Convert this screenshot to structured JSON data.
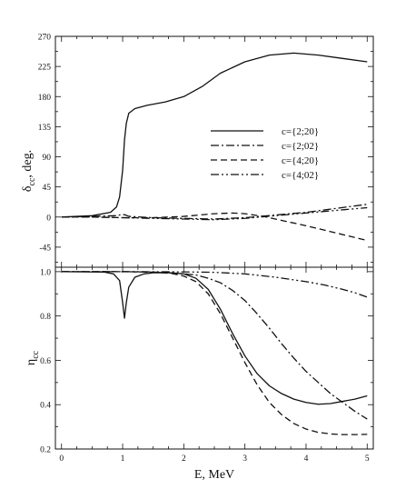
{
  "chart_data": [
    {
      "type": "line",
      "panel": "top",
      "ylabel": "δcc, deg.",
      "ylabel_main": "δ",
      "ylabel_sub": "cc",
      "ylabel_unit": ", deg.",
      "xlim": [
        -0.1,
        5.1
      ],
      "ylim": [
        -75,
        270
      ],
      "yticks": [
        -45,
        0,
        45,
        90,
        135,
        180,
        225,
        270
      ],
      "legend": "right",
      "series": [
        {
          "name": "c={2;20}",
          "dash": "solid",
          "x": [
            0,
            0.5,
            0.8,
            0.9,
            0.95,
            1.0,
            1.03,
            1.06,
            1.1,
            1.2,
            1.4,
            1.7,
            2.0,
            2.3,
            2.6,
            3.0,
            3.4,
            3.8,
            4.2,
            4.6,
            5.0
          ],
          "y": [
            0,
            2,
            7,
            15,
            30,
            70,
            115,
            140,
            155,
            162,
            167,
            172,
            180,
            195,
            215,
            232,
            242,
            245,
            242,
            237,
            232
          ]
        },
        {
          "name": "c={2;02}",
          "dash": "dashdot",
          "x": [
            0,
            0.5,
            0.9,
            1.0,
            1.05,
            1.1,
            1.5,
            2.0,
            2.5,
            3.0,
            3.5,
            4.0,
            4.5,
            5.0
          ],
          "y": [
            0,
            1,
            2,
            4,
            3,
            1,
            -1,
            -2,
            -3,
            -1,
            3,
            7,
            13,
            19
          ]
        },
        {
          "name": "c={4;20}",
          "dash": "dashed",
          "x": [
            0,
            0.5,
            1.0,
            1.5,
            2.0,
            2.5,
            2.8,
            3.0,
            3.3,
            3.6,
            4.0,
            4.5,
            5.0
          ],
          "y": [
            0,
            0,
            -1,
            -1,
            1,
            5,
            6,
            5,
            1,
            -5,
            -13,
            -24,
            -35
          ]
        },
        {
          "name": "c={4;02}",
          "dash": "dashdotdot",
          "x": [
            0,
            0.5,
            1.0,
            1.5,
            2.0,
            2.5,
            3.0,
            3.5,
            4.0,
            4.5,
            5.0
          ],
          "y": [
            0,
            0,
            -1,
            -2,
            -3,
            -4,
            -2,
            2,
            6,
            10,
            14
          ]
        }
      ]
    },
    {
      "type": "line",
      "panel": "bottom",
      "xlabel": "E, MeV",
      "ylabel": "ηcc",
      "ylabel_main": "η",
      "ylabel_sub": "cc",
      "xlim": [
        -0.1,
        5.1
      ],
      "ylim": [
        0.2,
        1.02
      ],
      "xticks": [
        0,
        1,
        2,
        3,
        4,
        5
      ],
      "yticks": [
        0.2,
        0.4,
        0.6,
        0.8,
        1.0
      ],
      "ytick_labels": [
        "0.2",
        "0.4",
        "0.6",
        "0.8",
        "1.0"
      ],
      "series": [
        {
          "name": "c={2;20}",
          "dash": "solid",
          "x": [
            0,
            0.7,
            0.85,
            0.95,
            1.0,
            1.03,
            1.06,
            1.1,
            1.2,
            1.35,
            1.5,
            1.8,
            2.0,
            2.2,
            2.4,
            2.6,
            2.8,
            3.0,
            3.2,
            3.4,
            3.6,
            3.8,
            4.0,
            4.2,
            4.4,
            4.6,
            4.8,
            5.0
          ],
          "y": [
            1.0,
            0.998,
            0.99,
            0.96,
            0.86,
            0.79,
            0.86,
            0.93,
            0.975,
            0.99,
            0.995,
            0.995,
            0.99,
            0.97,
            0.92,
            0.83,
            0.72,
            0.62,
            0.54,
            0.485,
            0.45,
            0.425,
            0.41,
            0.402,
            0.405,
            0.415,
            0.425,
            0.44
          ]
        },
        {
          "name": "c={2;02}",
          "dash": "dashdot",
          "x": [
            0,
            1.0,
            1.5,
            2.0,
            2.2,
            2.4,
            2.6,
            2.8,
            3.0,
            3.2,
            3.4,
            3.6,
            3.8,
            4.0,
            4.2,
            4.4,
            4.6,
            4.8,
            5.0
          ],
          "y": [
            1.0,
            1.0,
            0.998,
            0.99,
            0.985,
            0.97,
            0.95,
            0.915,
            0.87,
            0.81,
            0.745,
            0.675,
            0.61,
            0.55,
            0.5,
            0.45,
            0.41,
            0.37,
            0.335
          ]
        },
        {
          "name": "c={4;20}",
          "dash": "dashed",
          "x": [
            0,
            1.0,
            1.5,
            1.8,
            2.0,
            2.2,
            2.4,
            2.6,
            2.8,
            3.0,
            3.2,
            3.4,
            3.6,
            3.8,
            4.0,
            4.2,
            4.4,
            4.6,
            4.8,
            5.0
          ],
          "y": [
            1.0,
            1.0,
            0.998,
            0.992,
            0.98,
            0.955,
            0.9,
            0.81,
            0.7,
            0.59,
            0.49,
            0.41,
            0.355,
            0.315,
            0.29,
            0.275,
            0.268,
            0.265,
            0.265,
            0.266
          ]
        },
        {
          "name": "c={4;02}",
          "dash": "dashdotdot",
          "x": [
            0,
            1.0,
            2.0,
            2.5,
            3.0,
            3.5,
            4.0,
            4.3,
            4.6,
            4.8,
            5.0
          ],
          "y": [
            1.0,
            1.0,
            0.999,
            0.997,
            0.99,
            0.975,
            0.955,
            0.94,
            0.92,
            0.905,
            0.885
          ]
        }
      ]
    }
  ]
}
